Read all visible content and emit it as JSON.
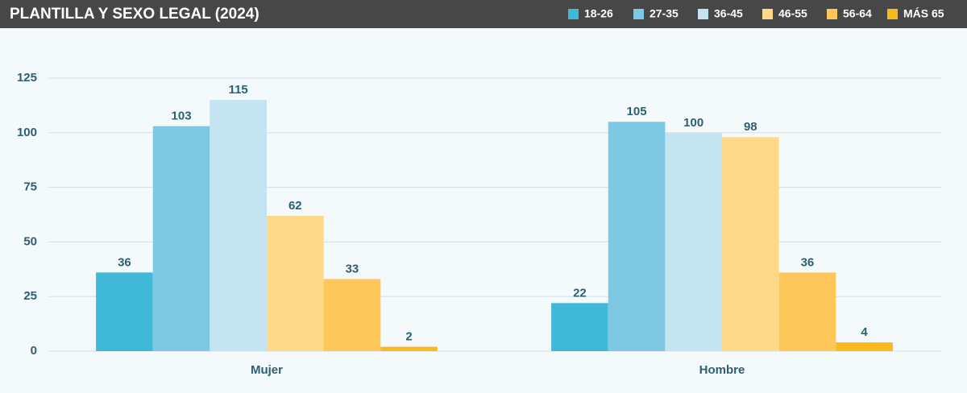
{
  "chart_data": {
    "type": "bar",
    "title": "PLANTILLA Y SEXO LEGAL (2024)",
    "categories": [
      "Mujer",
      "Hombre"
    ],
    "series": [
      {
        "name": "18-26",
        "color": "#40b8d8",
        "values": [
          36,
          22
        ]
      },
      {
        "name": "27-35",
        "color": "#7ec8e3",
        "values": [
          103,
          105
        ]
      },
      {
        "name": "36-45",
        "color": "#c3e4f0",
        "values": [
          115,
          100
        ]
      },
      {
        "name": "46-55",
        "color": "#fed98a",
        "values": [
          62,
          98
        ]
      },
      {
        "name": "56-64",
        "color": "#fdc75a",
        "values": [
          33,
          36
        ]
      },
      {
        "name": "MÁS 65",
        "color": "#f9b91e",
        "values": [
          2,
          4
        ]
      }
    ],
    "ylim": [
      0,
      140
    ],
    "yticks": [
      0,
      25,
      50,
      75,
      100,
      125
    ],
    "grid": true,
    "legend": "top-right"
  }
}
